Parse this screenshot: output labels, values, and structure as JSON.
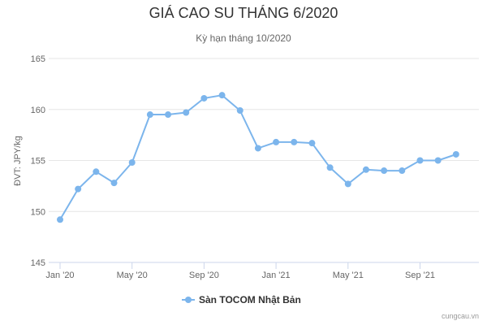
{
  "title": "GIÁ CAO SU THÁNG 6/2020",
  "subtitle": "Kỳ hạn tháng 10/2020",
  "credit": "cungcau.vn",
  "colors": {
    "series": "#7cb5ec",
    "grid": "#e6e6e6",
    "axis": "#ccd6eb"
  },
  "chart_data": {
    "type": "line",
    "title": "GIÁ CAO SU THÁNG 6/2020",
    "subtitle": "Kỳ hạn tháng 10/2020",
    "ylabel": "ĐVT: JPY/kg",
    "ylim": [
      145,
      165
    ],
    "yticks": [
      145,
      150,
      155,
      160,
      165
    ],
    "xlim": [
      "2020-01",
      "2021-12"
    ],
    "xticks": [
      {
        "label": "Jan '20",
        "month": "2020-01"
      },
      {
        "label": "May '20",
        "month": "2020-05"
      },
      {
        "label": "Sep '20",
        "month": "2020-09"
      },
      {
        "label": "Jan '21",
        "month": "2021-01"
      },
      {
        "label": "May '21",
        "month": "2021-05"
      },
      {
        "label": "Sep '21",
        "month": "2021-09"
      }
    ],
    "grid": true,
    "legend_position": "bottom-center",
    "series": [
      {
        "name": "Sàn TOCOM Nhật Bản",
        "points": [
          {
            "x": "2020-01-01",
            "y": 149.2
          },
          {
            "x": "2020-02-01",
            "y": 152.2
          },
          {
            "x": "2020-03-01",
            "y": 153.9
          },
          {
            "x": "2020-04-01",
            "y": 152.8
          },
          {
            "x": "2020-05-01",
            "y": 154.8
          },
          {
            "x": "2020-06-01",
            "y": 159.5
          },
          {
            "x": "2020-07-01",
            "y": 159.5
          },
          {
            "x": "2020-08-01",
            "y": 159.7
          },
          {
            "x": "2020-09-01",
            "y": 161.1
          },
          {
            "x": "2020-10-01",
            "y": 161.4
          },
          {
            "x": "2020-11-01",
            "y": 159.9
          },
          {
            "x": "2020-12-01",
            "y": 156.2
          },
          {
            "x": "2021-01-01",
            "y": 156.8
          },
          {
            "x": "2021-02-01",
            "y": 156.8
          },
          {
            "x": "2021-03-01",
            "y": 156.7
          },
          {
            "x": "2021-04-01",
            "y": 154.3
          },
          {
            "x": "2021-05-01",
            "y": 152.7
          },
          {
            "x": "2021-06-01",
            "y": 154.1
          },
          {
            "x": "2021-07-01",
            "y": 154.0
          },
          {
            "x": "2021-08-01",
            "y": 154.0
          },
          {
            "x": "2021-09-01",
            "y": 155.0
          },
          {
            "x": "2021-10-01",
            "y": 155.0
          },
          {
            "x": "2021-11-01",
            "y": 155.6
          }
        ]
      }
    ]
  }
}
